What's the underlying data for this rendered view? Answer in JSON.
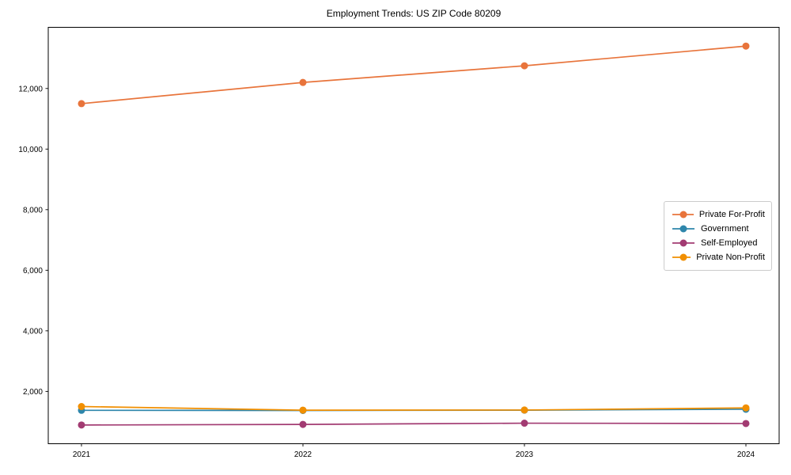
{
  "chart_data": {
    "type": "line",
    "title": "Employment Trends: US ZIP Code 80209",
    "xlabel": "",
    "ylabel": "",
    "x": [
      2021,
      2022,
      2023,
      2024
    ],
    "x_tick_labels": [
      "2021",
      "2022",
      "2023",
      "2024"
    ],
    "series": [
      {
        "name": "Private For-Profit",
        "color": "#E8743B",
        "values": [
          11500,
          12200,
          12750,
          13400
        ]
      },
      {
        "name": "Government",
        "color": "#2E86AB",
        "values": [
          1375,
          1370,
          1380,
          1410
        ]
      },
      {
        "name": "Self-Employed",
        "color": "#A23B72",
        "values": [
          890,
          910,
          950,
          940
        ]
      },
      {
        "name": "Private Non-Profit",
        "color": "#F18F01",
        "values": [
          1500,
          1380,
          1385,
          1455
        ]
      }
    ],
    "y_ticks": [
      {
        "value": 2000,
        "label": "2,000"
      },
      {
        "value": 4000,
        "label": "4,000"
      },
      {
        "value": 6000,
        "label": "6,000"
      },
      {
        "value": 8000,
        "label": "8,000"
      },
      {
        "value": 10000,
        "label": "10,000"
      },
      {
        "value": 12000,
        "label": "12,000"
      }
    ],
    "ylim": [
      272,
      14020
    ],
    "xlim": [
      2020.85,
      2024.15
    ],
    "grid": false,
    "marker": "o",
    "legend_position": "center right"
  },
  "figure": {
    "background_color": "#ffffff",
    "spine_color": "#000000",
    "tick_color": "#000000",
    "text_color": "#000000"
  }
}
